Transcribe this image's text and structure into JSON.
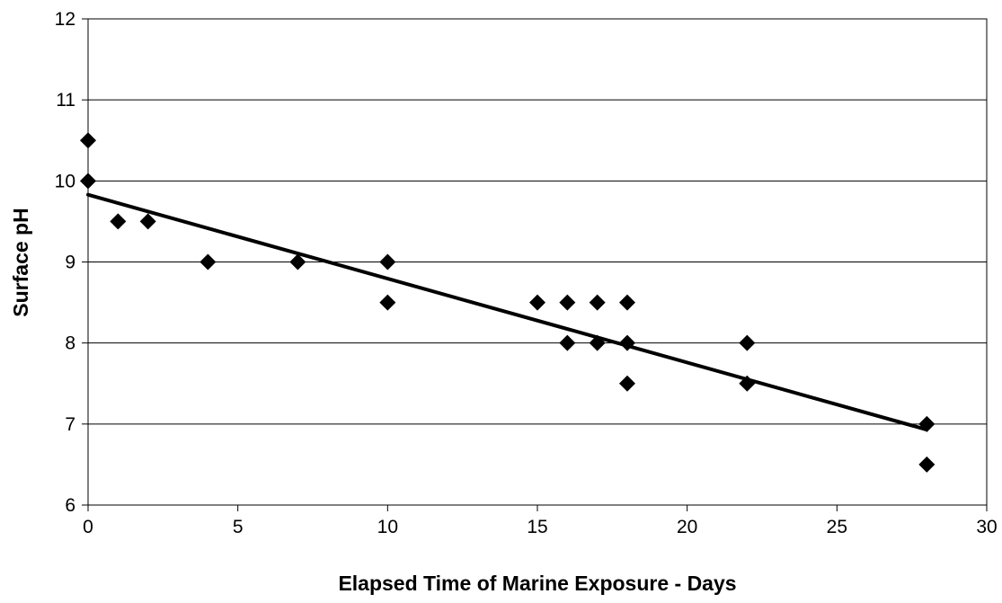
{
  "chart_data": {
    "type": "scatter",
    "title": "",
    "xlabel": "Elapsed Time of Marine Exposure - Days",
    "ylabel": "Surface pH",
    "xlim": [
      0,
      30
    ],
    "ylim": [
      6,
      12
    ],
    "xticks": [
      0,
      5,
      10,
      15,
      20,
      25,
      30
    ],
    "yticks": [
      6,
      7,
      8,
      9,
      10,
      11,
      12
    ],
    "grid": "horizontal",
    "legend": "none",
    "marker": "diamond",
    "colors": {
      "marker": "#000000",
      "trendline": "#000000",
      "grid": "#000000",
      "axis": "#000000"
    },
    "series": [
      {
        "x": [
          0,
          0,
          1,
          2,
          4,
          7,
          10,
          10,
          15,
          16,
          16,
          17,
          17,
          18,
          18,
          18,
          22,
          22,
          28,
          28
        ],
        "y": [
          10.5,
          10,
          9.5,
          9.5,
          9,
          9,
          9,
          8.5,
          8.5,
          8.5,
          8,
          8.5,
          8,
          8.5,
          8,
          7.5,
          8,
          7.5,
          7,
          6.5
        ]
      }
    ],
    "trendline": {
      "type": "linear",
      "x": [
        0,
        28
      ],
      "y": [
        9.83,
        6.93
      ]
    }
  }
}
